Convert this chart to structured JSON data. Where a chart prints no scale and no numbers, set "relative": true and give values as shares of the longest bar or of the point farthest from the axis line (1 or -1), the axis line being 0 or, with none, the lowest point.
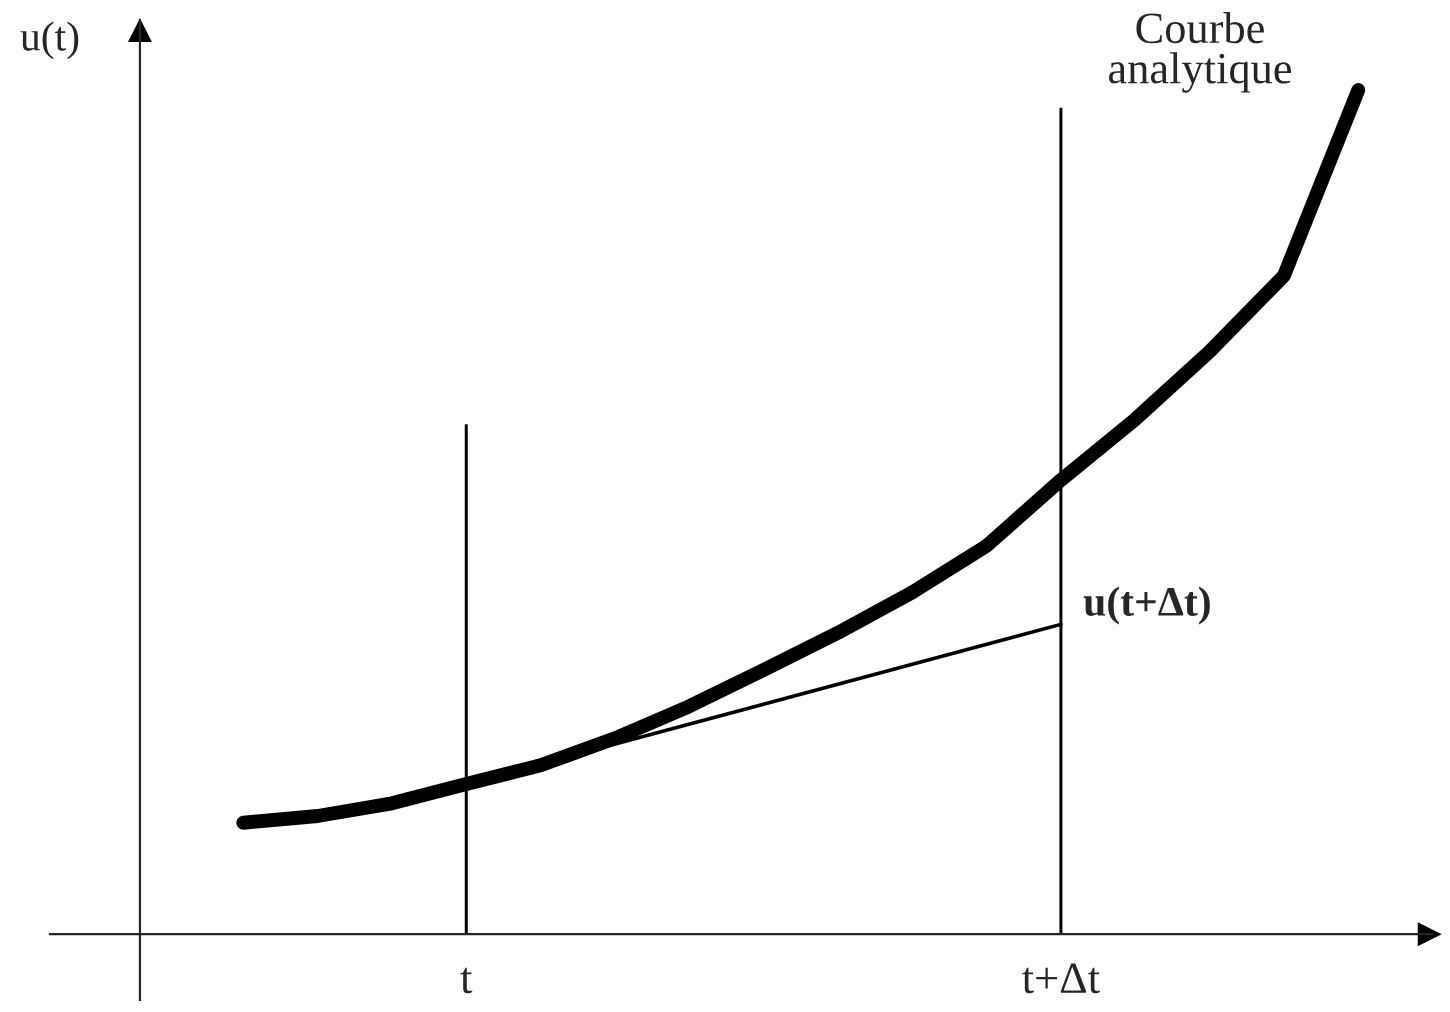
{
  "chart_data": {
    "type": "line",
    "relative": true,
    "ylabel": "u(t)",
    "categories": [
      null,
      null,
      null,
      "t",
      null,
      null,
      null,
      null,
      null,
      null,
      null,
      "t+Δt",
      null,
      null,
      null,
      null
    ],
    "tick_labels": "x",
    "grid": false,
    "legend": false,
    "marker": "none",
    "line_style": "solid",
    "series": [
      {
        "color": "#000000",
        "values": [
          0.132,
          0.14,
          0.155,
          0.178,
          0.2,
          0.232,
          0.27,
          0.313,
          0.357,
          0.405,
          0.46,
          0.538,
          0.61,
          0.69,
          0.78,
          1.0
        ]
      },
      {
        "color": "#000000",
        "x": [
          "t",
          "t+Δt"
        ],
        "values": [
          0.178,
          0.367
        ]
      },
      {
        "type": "bar",
        "color": "#000000",
        "values": [
          null,
          null,
          null,
          0.604,
          null,
          null,
          null,
          null,
          null,
          null,
          null,
          0.979,
          null,
          null,
          null,
          null
        ]
      }
    ],
    "annotations": [
      "Courbe\nanalytique",
      {
        "text": "u(t+Δt)",
        "x": "t+Δt",
        "y": 0.367
      }
    ]
  }
}
